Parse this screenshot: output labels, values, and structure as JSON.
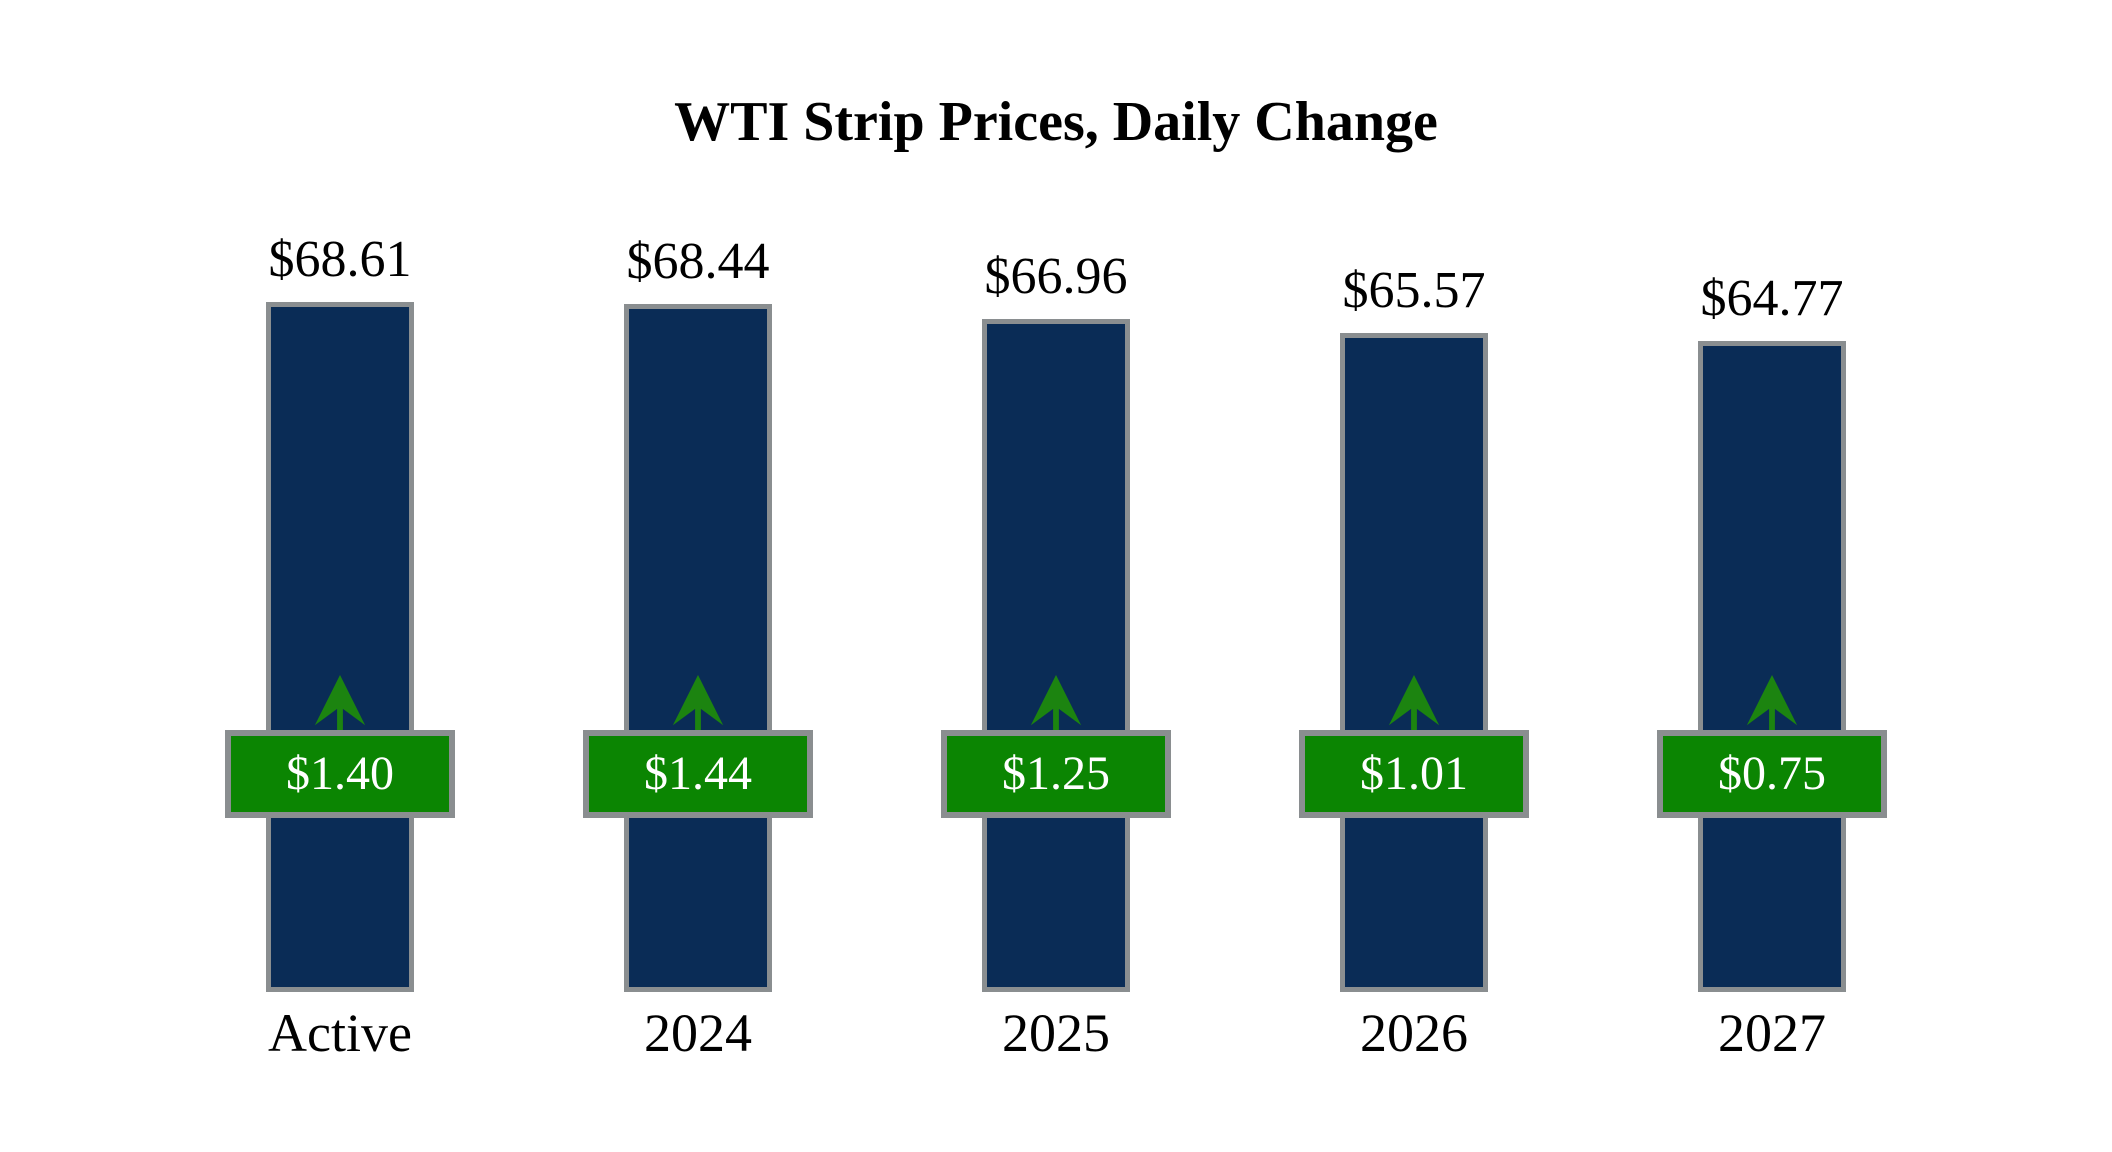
{
  "page": {
    "background": "#ffffff"
  },
  "chart_data": {
    "type": "bar",
    "title": "WTI Strip Prices, Daily Change",
    "categories": [
      "Active",
      "2024",
      "2025",
      "2026",
      "2027"
    ],
    "series": [
      {
        "name": "Strip Price",
        "values": [
          68.61,
          68.44,
          66.96,
          65.57,
          64.77
        ]
      },
      {
        "name": "Daily Change",
        "values": [
          1.4,
          1.44,
          1.25,
          1.01,
          0.75
        ]
      }
    ],
    "bars": [
      {
        "category": "Active",
        "price": 68.61,
        "price_label": "$68.61",
        "change": 1.4,
        "change_label": "$1.40",
        "direction": "up"
      },
      {
        "category": "2024",
        "price": 68.44,
        "price_label": "$68.44",
        "change": 1.44,
        "change_label": "$1.44",
        "direction": "up"
      },
      {
        "category": "2025",
        "price": 66.96,
        "price_label": "$66.96",
        "change": 1.25,
        "change_label": "$1.25",
        "direction": "up"
      },
      {
        "category": "2026",
        "price": 65.57,
        "price_label": "$65.57",
        "change": 1.01,
        "change_label": "$1.01",
        "direction": "up"
      },
      {
        "category": "2027",
        "price": 64.77,
        "price_label": "$64.77",
        "change": 0.75,
        "change_label": "$0.75",
        "direction": "up"
      }
    ],
    "ylim": [
      0,
      70
    ],
    "grid": false,
    "legend": false,
    "colors": {
      "bar_fill": "#0a2c56",
      "bar_border": "#8a8e90",
      "badge_fill": "#0b8502",
      "badge_border": "#8a8e90",
      "badge_text": "#ffffff",
      "arrow": "#1c8410",
      "label_text": "#000000"
    }
  }
}
